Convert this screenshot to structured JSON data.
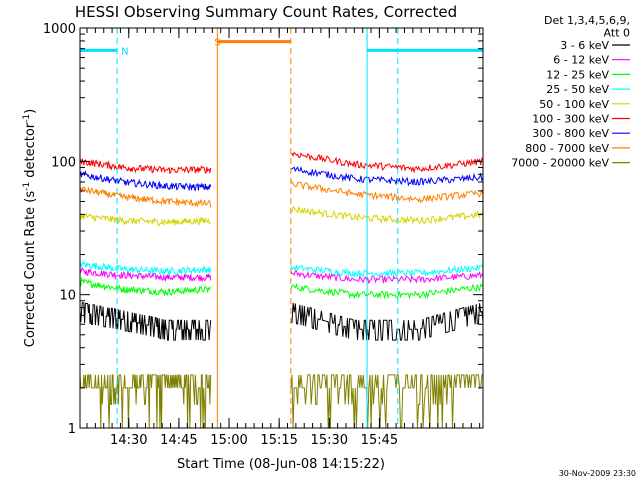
{
  "chart_data": {
    "type": "line",
    "title": "HESSI Observing Summary Count Rates, Corrected",
    "ylabel_parts": {
      "prefix": "Corrected Count Rate (s",
      "exp1": "-1",
      "mid": " detector",
      "exp2": "-1",
      "suffix": ")"
    },
    "xlabel": "Start Time (08-Jun-08 14:15:22)",
    "footer": "30-Nov-2009 23:30",
    "y_scale": "log",
    "ylim": [
      1,
      1000
    ],
    "y_tick_labels": [
      {
        "value": 1,
        "label": "1"
      },
      {
        "value": 10,
        "label": "10"
      },
      {
        "value": 100,
        "label": "100"
      },
      {
        "value": 1000,
        "label": "1000"
      }
    ],
    "x_range_min": [
      855.4,
      976.0
    ],
    "x_ticks": [
      {
        "value": 870,
        "label": "14:30"
      },
      {
        "value": 885,
        "label": "14:45"
      },
      {
        "value": 900,
        "label": "15:00"
      },
      {
        "value": 915,
        "label": "15:15"
      },
      {
        "value": 930,
        "label": "15:30"
      },
      {
        "value": 945,
        "label": "15:45"
      }
    ],
    "legend_title": [
      "Det 1,3,4,5,6,9,",
      "Att 0"
    ],
    "legend_position": "right",
    "data_gap": [
      894.5,
      918.5
    ],
    "series": [
      {
        "name": "3 - 6 keV",
        "color": "#000000",
        "left": [
          7.5,
          6.5,
          5.5,
          5.5
        ],
        "right": [
          7.5,
          5.5,
          5.5,
          7.5
        ]
      },
      {
        "name": "6 - 12 keV",
        "color": "#ff00ff",
        "left": [
          15,
          14,
          13.5,
          13.5
        ],
        "right": [
          14.5,
          13,
          13,
          14
        ]
      },
      {
        "name": "12 - 25 keV",
        "color": "#00ff00",
        "left": [
          12.5,
          11,
          10.5,
          11
        ],
        "right": [
          11.5,
          10,
          10,
          11.5
        ]
      },
      {
        "name": "25 - 50 keV",
        "color": "#00ffff",
        "left": [
          17,
          15.5,
          15,
          15.5
        ],
        "right": [
          16,
          14.5,
          14.5,
          16
        ]
      },
      {
        "name": "50 - 100 keV",
        "color": "#d4d400",
        "left": [
          39,
          36,
          35,
          36
        ],
        "right": [
          44,
          38,
          36,
          40
        ]
      },
      {
        "name": "100 - 300 keV",
        "color": "#ff0000",
        "left": [
          100,
          90,
          86,
          87
        ],
        "right": [
          115,
          95,
          88,
          100
        ]
      },
      {
        "name": "300 - 800 keV",
        "color": "#0000ff",
        "left": [
          80,
          70,
          65,
          64
        ],
        "right": [
          88,
          74,
          70,
          76
        ]
      },
      {
        "name": "800 - 7000 keV",
        "color": "#ff8000",
        "left": [
          62,
          54,
          50,
          48
        ],
        "right": [
          68,
          57,
          52,
          58
        ]
      },
      {
        "name": "7000 - 20000 keV",
        "color": "#808000",
        "left": [
          2.5,
          2,
          1.5,
          1.5
        ],
        "right": [
          2.5,
          1.5,
          1.5,
          2.5
        ]
      }
    ],
    "annotations": [
      {
        "label": "N",
        "color": "#00e0ff",
        "time": 866.5,
        "value": 680
      },
      {
        "label": "S",
        "color": "#ff8000",
        "time": 894.4,
        "value": 790
      }
    ],
    "night_segments": [
      [
        855.4,
        866.5
      ],
      [
        941.3,
        976.0
      ]
    ],
    "saa_segment": [
      896.5,
      918.5
    ],
    "vlines": [
      {
        "time": 866.5,
        "color": "#00e0ff",
        "style": "dashed"
      },
      {
        "time": 941.3,
        "color": "#00e0ff",
        "style": "solid"
      },
      {
        "time": 950.5,
        "color": "#00e0ff",
        "style": "dashed"
      },
      {
        "time": 896.5,
        "color": "#ff8000",
        "style": "solid"
      },
      {
        "time": 918.5,
        "color": "#ff8000",
        "style": "dashed"
      }
    ]
  }
}
